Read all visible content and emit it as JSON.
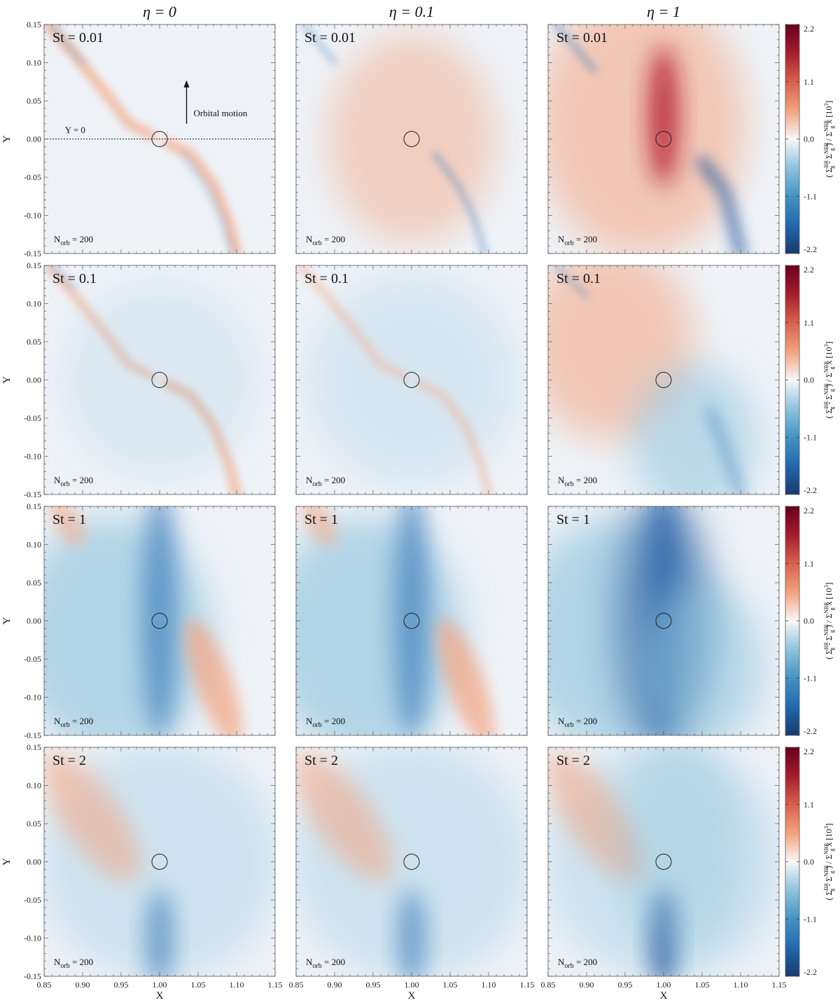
{
  "chart_data": {
    "type": "heatmap",
    "column_titles": [
      "η = 0",
      "η = 0.1",
      "η = 1"
    ],
    "row_labels": [
      "St = 0.01",
      "St = 0.1",
      "St = 1",
      "St = 2"
    ],
    "panel_note": "N",
    "panel_note_sub": "orb",
    "panel_note_value": " = 200",
    "eta_values": [
      0,
      0.1,
      1
    ],
    "st_values": [
      0.01,
      0.1,
      1,
      2
    ],
    "xlabel": "X",
    "ylabel": "Y",
    "xlim": [
      0.85,
      1.15
    ],
    "ylim": [
      -0.15,
      0.15
    ],
    "x_ticks": [
      "0.85",
      "0.90",
      "0.95",
      "1.00",
      "1.05",
      "1.10",
      "1.15"
    ],
    "y_ticks": [
      "0.15",
      "0.10",
      "0.05",
      "0.00",
      "-0.05",
      "-0.10",
      "-0.15"
    ],
    "colorbar": {
      "ticks": [
        "2.2",
        "1.1",
        "0.0",
        "-1.1",
        "-2.2"
      ],
      "range": [
        -2.2,
        2.2
      ],
      "colormap": "diverging red-white-blue",
      "high_color": "#7a0c1f",
      "mid_color": "#f5f5f5",
      "low_color": "#1f3f7a",
      "label_parts": [
        "( Σ",
        "BR",
        "g",
        " - Σ",
        "NBR",
        "g",
        " ) / Σ",
        "NBR",
        "g",
        " x [10",
        "3",
        "]"
      ]
    },
    "marker": "circle at (X, Y) = (1.00, 0.00)",
    "annotations": {
      "y0_line_label": "Y = 0",
      "orbital_motion_label": "Orbital motion"
    }
  }
}
